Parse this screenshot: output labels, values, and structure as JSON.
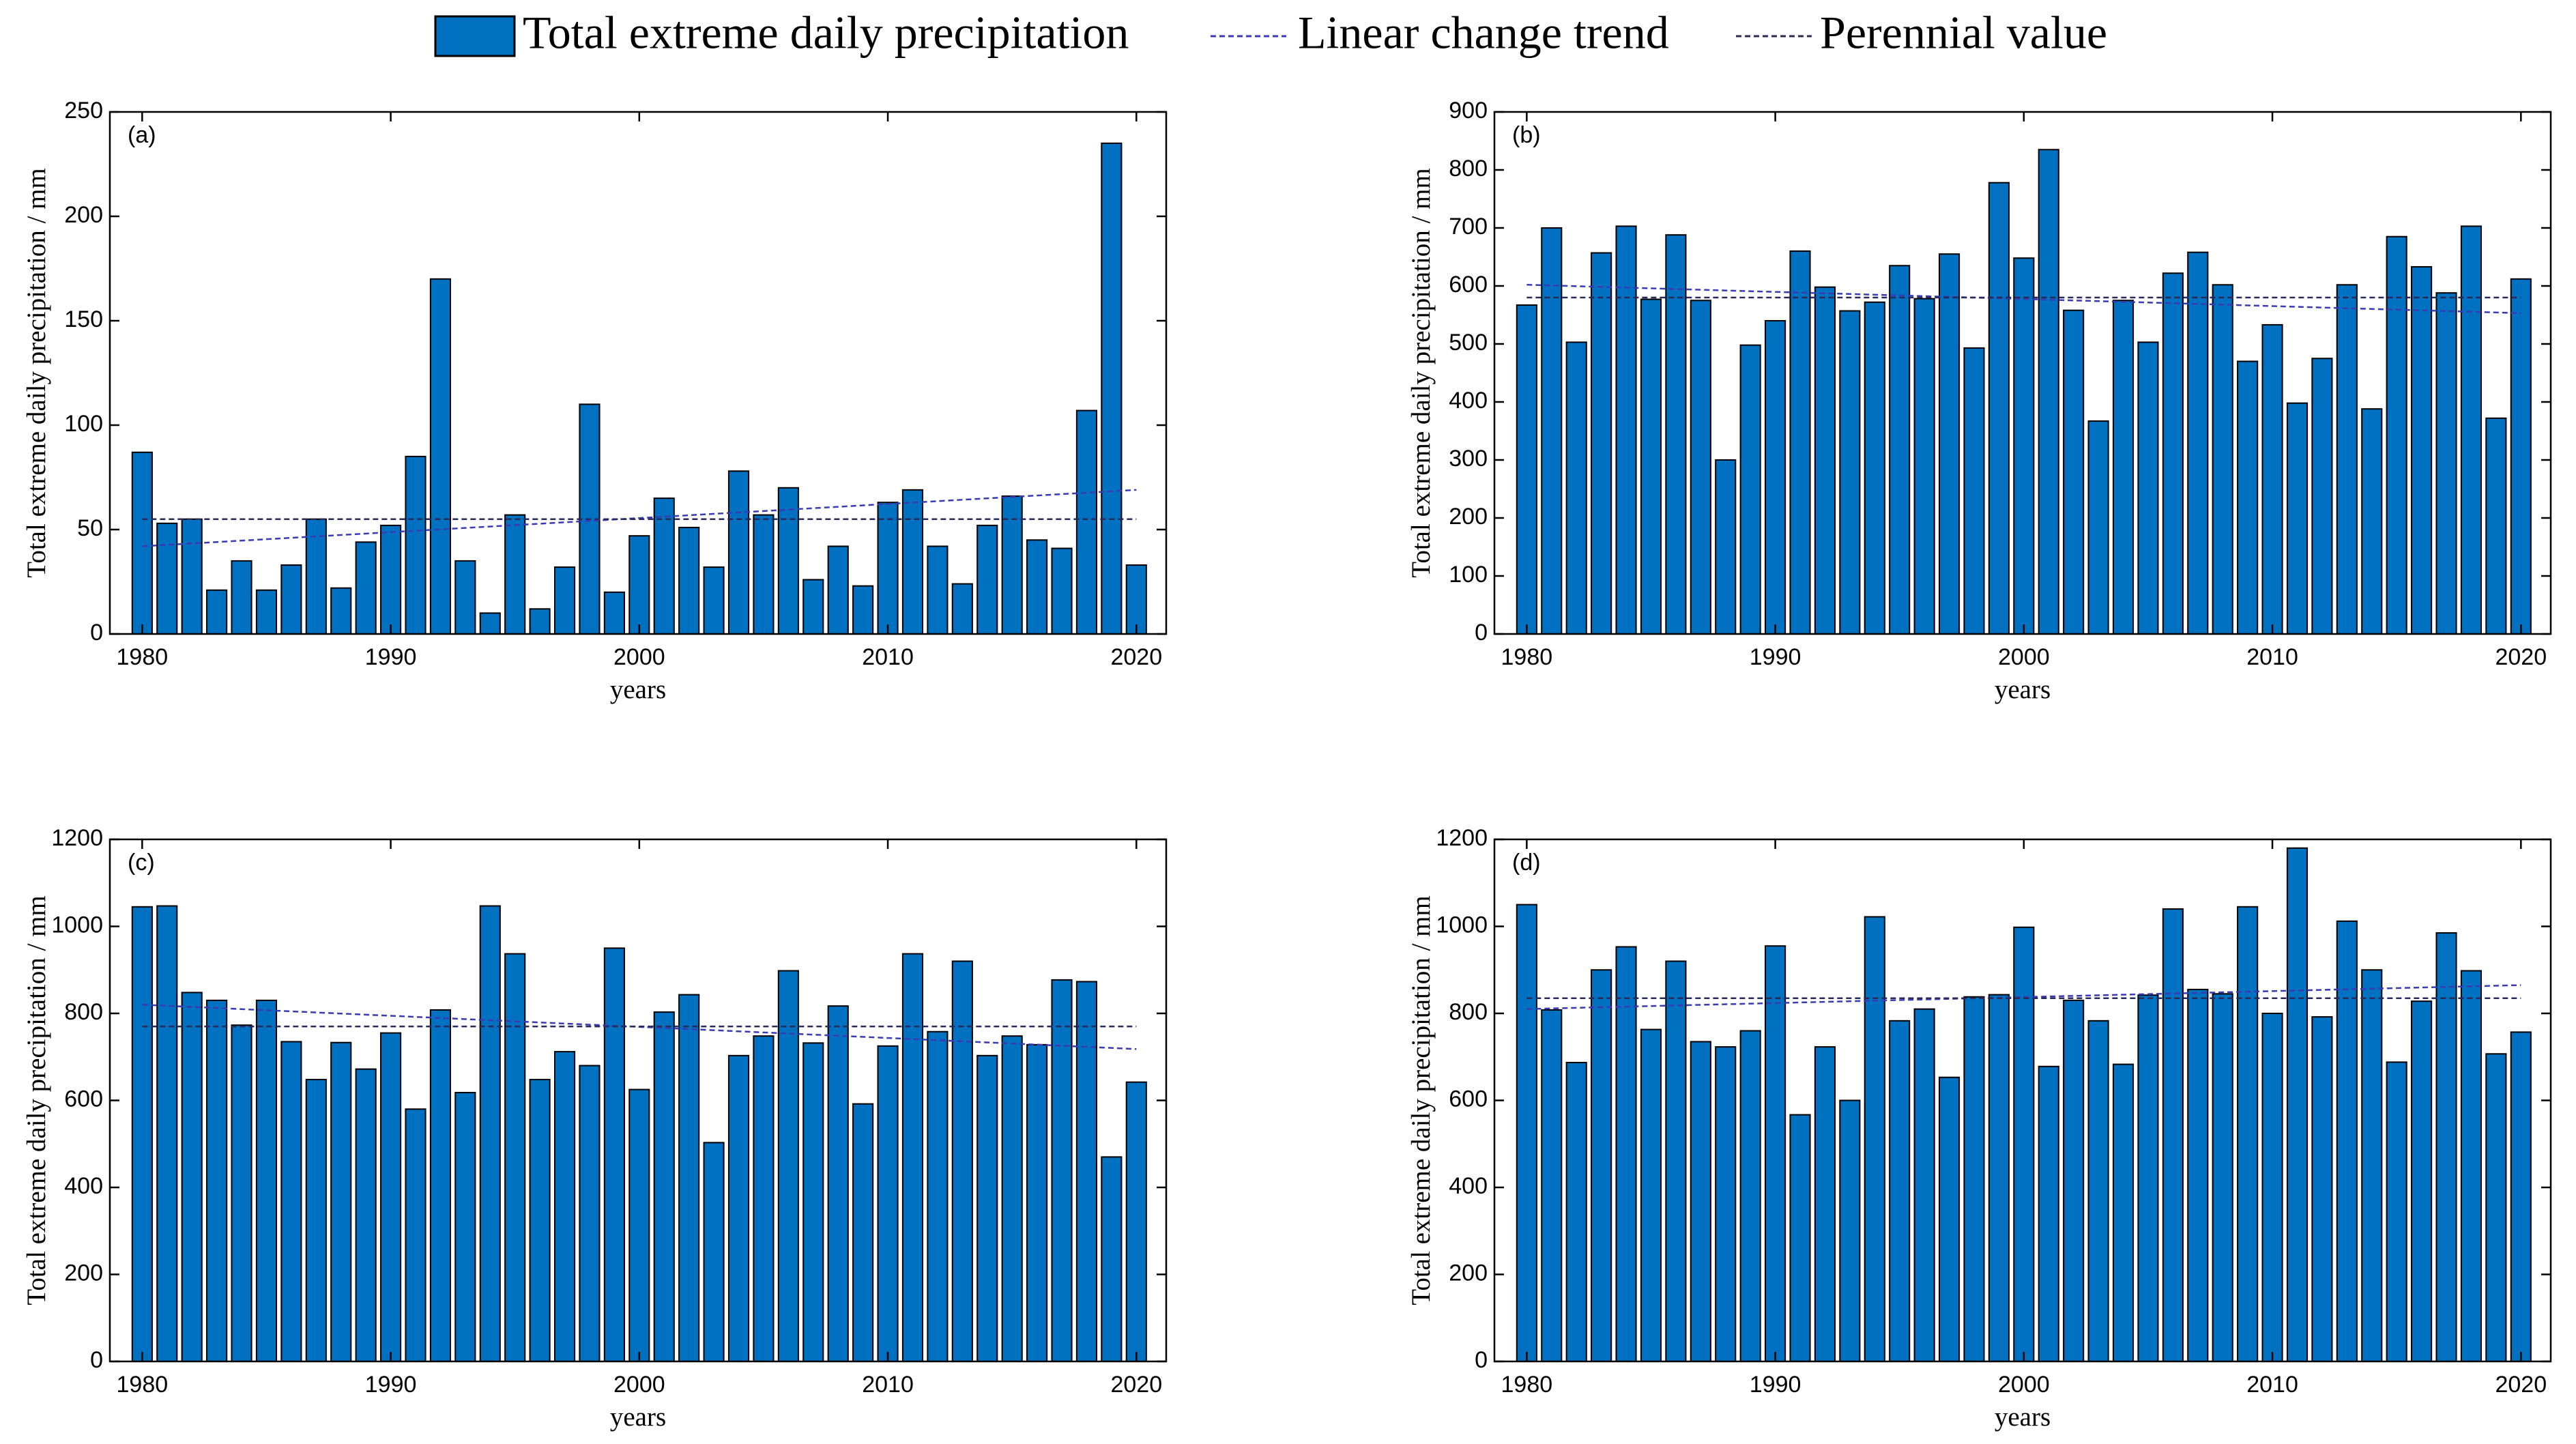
{
  "legend": [
    {
      "name": "Total extreme daily precipitation",
      "color": "#0070c0"
    },
    {
      "name": "Linear change trend",
      "color": "#3a3ab5"
    },
    {
      "name": "Perennial value",
      "color": "#2a2a5a"
    }
  ],
  "chart_data": [
    {
      "type": "bar",
      "label": "(a)",
      "ylabel": "Total extreme daily precipitation / mm",
      "xlabel": "years",
      "x": [
        1980,
        1981,
        1982,
        1983,
        1984,
        1985,
        1986,
        1987,
        1988,
        1989,
        1990,
        1991,
        1992,
        1993,
        1994,
        1995,
        1996,
        1997,
        1998,
        1999,
        2000,
        2001,
        2002,
        2003,
        2004,
        2005,
        2006,
        2007,
        2008,
        2009,
        2010,
        2011,
        2012,
        2013,
        2014,
        2015,
        2016,
        2017,
        2018,
        2019,
        2020
      ],
      "values": [
        87,
        53,
        55,
        21,
        35,
        21,
        33,
        55,
        22,
        44,
        52,
        85,
        170,
        35,
        10,
        57,
        12,
        32,
        110,
        20,
        47,
        65,
        51,
        32,
        78,
        57,
        70,
        26,
        42,
        23,
        63,
        69,
        42,
        24,
        52,
        66,
        45,
        41,
        107,
        235,
        33
      ],
      "trend": [
        42,
        69
      ],
      "perennial": 55,
      "xlim": [
        1978.7,
        2021.2
      ],
      "ylim": [
        0,
        250
      ],
      "xticks": [
        1980,
        1990,
        2000,
        2010,
        2020
      ],
      "yticks": [
        0,
        50,
        100,
        150,
        200,
        250
      ]
    },
    {
      "type": "bar",
      "label": "(b)",
      "ylabel": "Total extreme daily precipitation / mm",
      "xlabel": "years",
      "x": [
        1980,
        1981,
        1982,
        1983,
        1984,
        1985,
        1986,
        1987,
        1988,
        1989,
        1990,
        1991,
        1992,
        1993,
        1994,
        1995,
        1996,
        1997,
        1998,
        1999,
        2000,
        2001,
        2002,
        2003,
        2004,
        2005,
        2006,
        2007,
        2008,
        2009,
        2010,
        2011,
        2012,
        2013,
        2014,
        2015,
        2016,
        2017,
        2018,
        2019,
        2020
      ],
      "values": [
        567,
        700,
        503,
        657,
        703,
        577,
        688,
        575,
        300,
        498,
        540,
        660,
        598,
        557,
        572,
        635,
        578,
        655,
        493,
        778,
        648,
        835,
        558,
        367,
        575,
        503,
        622,
        658,
        602,
        470,
        533,
        398,
        475,
        602,
        388,
        685,
        633,
        588,
        703,
        372,
        612
      ],
      "trend": [
        602,
        553
      ],
      "perennial": 580,
      "xlim": [
        1978.7,
        2021.2
      ],
      "ylim": [
        0,
        900
      ],
      "xticks": [
        1980,
        1990,
        2000,
        2010,
        2020
      ],
      "yticks": [
        0,
        100,
        200,
        300,
        400,
        500,
        600,
        700,
        800,
        900
      ]
    },
    {
      "type": "bar",
      "label": "(c)",
      "ylabel": "Total extreme daily precipitation / mm",
      "xlabel": "years",
      "x": [
        1980,
        1981,
        1982,
        1983,
        1984,
        1985,
        1986,
        1987,
        1988,
        1989,
        1990,
        1991,
        1992,
        1993,
        1994,
        1995,
        1996,
        1997,
        1998,
        1999,
        2000,
        2001,
        2002,
        2003,
        2004,
        2005,
        2006,
        2007,
        2008,
        2009,
        2010,
        2011,
        2012,
        2013,
        2014,
        2015,
        2016,
        2017,
        2018,
        2019,
        2020
      ],
      "values": [
        1045,
        1047,
        848,
        830,
        773,
        830,
        735,
        648,
        733,
        672,
        755,
        580,
        808,
        618,
        1047,
        937,
        648,
        712,
        680,
        950,
        625,
        803,
        843,
        503,
        703,
        748,
        898,
        732,
        817,
        592,
        725,
        937,
        758,
        920,
        703,
        748,
        728,
        877,
        873,
        470,
        642
      ],
      "trend": [
        820,
        718
      ],
      "perennial": 770,
      "xlim": [
        1978.7,
        2021.2
      ],
      "ylim": [
        0,
        1200
      ],
      "xticks": [
        1980,
        1990,
        2000,
        2010,
        2020
      ],
      "yticks": [
        0,
        200,
        400,
        600,
        800,
        1000,
        1200
      ]
    },
    {
      "type": "bar",
      "label": "(d)",
      "ylabel": "Total extreme daily precipitation / mm",
      "xlabel": "years",
      "x": [
        1980,
        1981,
        1982,
        1983,
        1984,
        1985,
        1986,
        1987,
        1988,
        1989,
        1990,
        1991,
        1992,
        1993,
        1994,
        1995,
        1996,
        1997,
        1998,
        1999,
        2000,
        2001,
        2002,
        2003,
        2004,
        2005,
        2006,
        2007,
        2008,
        2009,
        2010,
        2011,
        2012,
        2013,
        2014,
        2015,
        2016,
        2017,
        2018,
        2019,
        2020
      ],
      "values": [
        1050,
        808,
        687,
        900,
        953,
        763,
        920,
        735,
        723,
        760,
        955,
        567,
        723,
        600,
        1022,
        783,
        810,
        653,
        838,
        843,
        998,
        678,
        830,
        783,
        683,
        842,
        1040,
        855,
        845,
        1045,
        800,
        1180,
        792,
        1012,
        900,
        688,
        828,
        985,
        898,
        707,
        757
      ],
      "trend": [
        810,
        865
      ],
      "perennial": 835,
      "xlim": [
        1978.7,
        2021.2
      ],
      "ylim": [
        0,
        1200
      ],
      "xticks": [
        1980,
        1990,
        2000,
        2010,
        2020
      ],
      "yticks": [
        0,
        200,
        400,
        600,
        800,
        1000,
        1200
      ]
    }
  ]
}
